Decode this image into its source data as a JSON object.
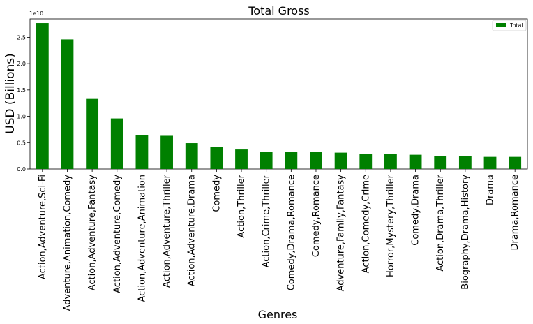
{
  "chart_data": {
    "type": "bar",
    "title": "Total Gross",
    "xlabel": "Genres",
    "ylabel": "USD (Billions)",
    "y_offset_text": "1e10",
    "ylim": [
      0,
      2.85
    ],
    "yticks": [
      "0.0",
      "0.5",
      "1.0",
      "1.5",
      "2.0",
      "2.5"
    ],
    "grid": false,
    "legend": "top-right",
    "bar_color": "#008000",
    "categories": [
      "Action,Adventure,Sci-Fi",
      "Adventure,Animation,Comedy",
      "Action,Adventure,Fantasy",
      "Action,Adventure,Comedy",
      "Action,Adventure,Animation",
      "Action,Adventure,Thriller",
      "Action,Adventure,Drama",
      "Comedy",
      "Action,Thriller",
      "Action,Crime,Thriller",
      "Comedy,Drama,Romance",
      "Comedy,Romance",
      "Adventure,Family,Fantasy",
      "Action,Comedy,Crime",
      "Horror,Mystery,Thriller",
      "Comedy,Drama",
      "Action,Drama,Thriller",
      "Biography,Drama,History",
      "Drama",
      "Drama,Romance"
    ],
    "series": [
      {
        "name": "Total",
        "values": [
          2.77,
          2.46,
          1.33,
          0.96,
          0.64,
          0.63,
          0.49,
          0.42,
          0.37,
          0.33,
          0.32,
          0.32,
          0.31,
          0.29,
          0.28,
          0.27,
          0.25,
          0.24,
          0.23,
          0.23
        ]
      }
    ]
  }
}
